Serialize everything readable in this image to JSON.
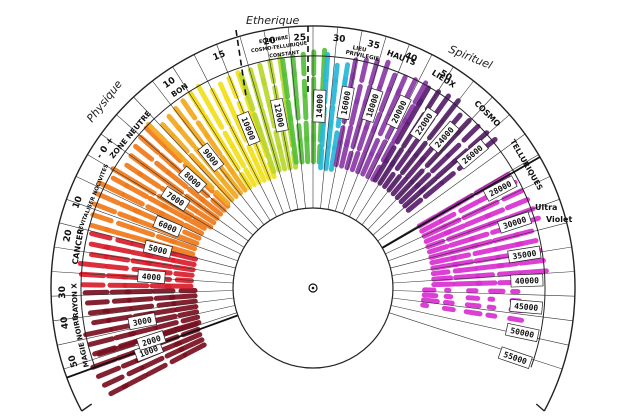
{
  "zones": {
    "physique": "Physique",
    "etherique": "Etherique",
    "spirituel": "Spirituel",
    "ultra_violet": "Ultra\nViolet"
  },
  "ring_labels": [
    {
      "text": "MAGIE NOIRE",
      "name": "label-magie-noire"
    },
    {
      "text": "RAYON X",
      "name": "label-rayon-x"
    },
    {
      "text": "CANCER",
      "name": "label-cancer"
    },
    {
      "text": "DEVITALISER NOCIVITES",
      "name": "label-devitaliser"
    },
    {
      "text": "ZONE NEUTRE",
      "name": "label-zone-neutre"
    },
    {
      "text": "BON",
      "name": "label-bon"
    },
    {
      "text": "EQUILIBRE",
      "name": "label-equilibre"
    },
    {
      "text": "COSMO-TELLURIQUE",
      "name": "label-cosmo-tellurique-1"
    },
    {
      "text": "CONSTANT",
      "name": "label-constant"
    },
    {
      "text": "LIEU",
      "name": "label-lieu"
    },
    {
      "text": "PRIVILEGIE",
      "name": "label-privilegie"
    },
    {
      "text": "HAUTS",
      "name": "label-hauts"
    },
    {
      "text": "LIEUX",
      "name": "label-lieux"
    },
    {
      "text": "COSMO",
      "name": "label-cosmo"
    },
    {
      "text": "TELLURIQUES",
      "name": "label-telluriques"
    }
  ],
  "scale_ticks": [
    "50",
    "40",
    "30",
    "20",
    "10",
    "- 0 +",
    "10",
    "15",
    "20",
    "25",
    "30",
    "35",
    "40",
    "50"
  ],
  "value_boxes": [
    "1000",
    "2000",
    "3000",
    "4000",
    "5000",
    "6000",
    "7000",
    "8000",
    "9000",
    "10000",
    "12000",
    "14000",
    "16000",
    "18000",
    "20000",
    "22000",
    "24000",
    "26000",
    "28000",
    "30000",
    "35000",
    "40000",
    "45000",
    "50000",
    "55000"
  ],
  "colors": {
    "dark_red": "#7a1020",
    "red": "#d81e2c",
    "orange": "#f07a1a",
    "amber": "#f4a81c",
    "yellow": "#f3e01a",
    "yellow_green": "#b9d72c",
    "green": "#55c03a",
    "cyan": "#27b8d8",
    "violet": "#8a3aa8",
    "dark_violet": "#5a1f6e",
    "magenta": "#d82fd0"
  }
}
